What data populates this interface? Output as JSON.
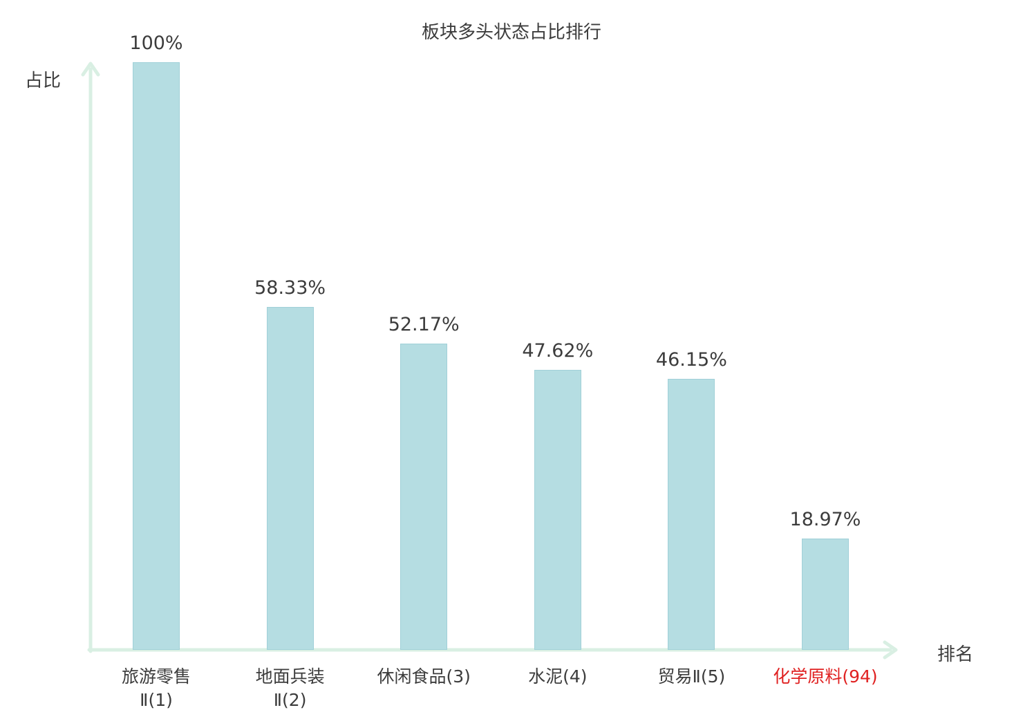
{
  "chart_data": {
    "type": "bar",
    "title": "板块多头状态占比排行",
    "ylabel": "占比",
    "xlabel": "排名",
    "categories": [
      "旅游零售\nⅡ(1)",
      "地面兵装\nⅡ(2)",
      "休闲食品(3)",
      "水泥(4)",
      "贸易Ⅱ(5)",
      "化学原料(94)"
    ],
    "values": [
      100,
      58.33,
      52.17,
      47.62,
      46.15,
      18.97
    ],
    "value_labels": [
      "100%",
      "58.33%",
      "52.17%",
      "47.62%",
      "46.15%",
      "18.97%"
    ],
    "highlighted_index": 5,
    "ylim": [
      0,
      100
    ],
    "grid": false,
    "legend": "none",
    "colors": {
      "bar_fill": "#b5dde2",
      "bar_border": "#a0d0d8",
      "axis": "#d9efe3",
      "text": "#3c3c3c",
      "highlight_text": "#e02222"
    }
  }
}
